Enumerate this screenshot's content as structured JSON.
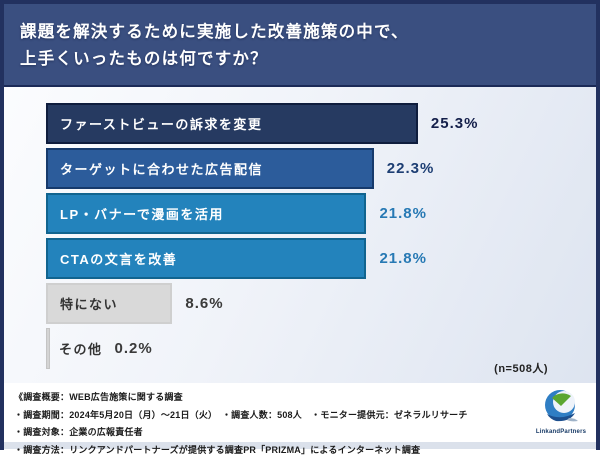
{
  "title": {
    "line1": "課題を解決するために実施した改善施策の中で、",
    "line2": "上手くいったものは何ですか？"
  },
  "chart_data": {
    "type": "bar",
    "orientation": "horizontal",
    "unit": "%",
    "title": "課題を解決するために実施した改善施策の中で、上手くいったものは何ですか？",
    "sample_note": "(n=508人)",
    "axis_max": 25.3,
    "categories": [
      "ファーストビューの訴求を変更",
      "ターゲットに合わせた広告配信",
      "LP・バナーで漫画を活用",
      "CTAの文言を改善",
      "特にない",
      "その他"
    ],
    "values": [
      25.3,
      22.3,
      21.8,
      21.8,
      8.6,
      0.2
    ],
    "bars": [
      {
        "label": "ファーストビューの訴求を変更",
        "value": 25.3,
        "display": "25.3%",
        "fill": "#263a61",
        "border": "#0f1d3d",
        "label_color": "#ffffff",
        "value_color": "#141f4a",
        "label_inside": true
      },
      {
        "label": "ターゲットに合わせた広告配信",
        "value": 22.3,
        "display": "22.3%",
        "fill": "#2c5c9b",
        "border": "#163a6c",
        "label_color": "#ffffff",
        "value_color": "#1d3e73",
        "label_inside": true
      },
      {
        "label": "LP・バナーで漫画を活用",
        "value": 21.8,
        "display": "21.8%",
        "fill": "#2383bc",
        "border": "#11648f",
        "label_color": "#ffffff",
        "value_color": "#2779b4",
        "label_inside": true
      },
      {
        "label": "CTAの文言を改善",
        "value": 21.8,
        "display": "21.8%",
        "fill": "#2383bc",
        "border": "#11648f",
        "label_color": "#ffffff",
        "value_color": "#2779b4",
        "label_inside": true
      },
      {
        "label": "特にない",
        "value": 8.6,
        "display": "8.6%",
        "fill": "#d9d9d9",
        "border": "#cfcfcf",
        "label_color": "#333333",
        "value_color": "#3a3a3a",
        "label_inside": true
      },
      {
        "label": "その他",
        "value": 0.2,
        "display": "0.2%",
        "fill": "#d4d4d4",
        "border": "#c4c4c4",
        "label_color": "#333333",
        "value_color": "#3a3a3a",
        "label_inside": false
      }
    ],
    "legend": null,
    "grid": false
  },
  "footer": {
    "lines": [
      "《調査概要：WEB広告施策に関する調査",
      "・調査期間：2024年5月20日（月）～21日（火）　・調査人数：508人　・モニター提供元：ゼネラルリサーチ",
      "・調査対象：企業の広報責任者",
      "・調査方法：リンクアンドパートナーズが提供する調査PR「PRIZMA」によるインターネット調査"
    ],
    "logo_text": "LinkandPartners"
  },
  "colors": {
    "title_bg": "#3a4f80",
    "frame_border": "#22315f",
    "bar_dark_navy": "#263a61",
    "bar_navy": "#2c5c9b",
    "bar_blue": "#2383bc",
    "bar_gray": "#d9d9d9",
    "logo_blue": "#2f7ec4",
    "logo_green": "#5aa631"
  }
}
